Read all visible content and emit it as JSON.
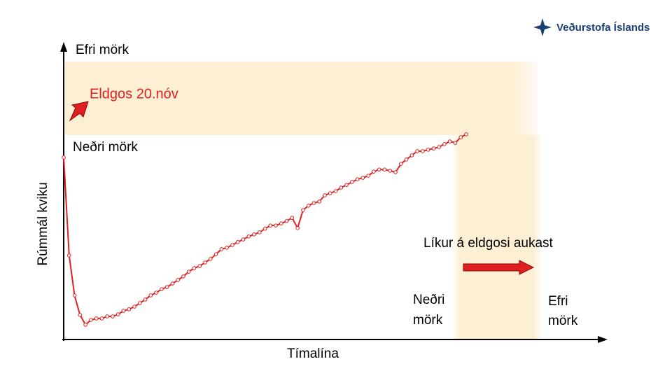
{
  "chart_data": {
    "type": "line",
    "y_label": "Rúmmál kviku",
    "x_label": "Tímalína",
    "logo": "Veðurstofa Íslands",
    "annotations": {
      "upper_limit": "Efri mörk",
      "eruption": "Eldgos 20.nóv",
      "lower_limit": "Neðri mörk",
      "likelihood": "Líkur á eldgosi aukast",
      "time_lower": [
        "Neðri",
        "mörk"
      ],
      "time_upper": [
        "Efri",
        "mörk"
      ]
    },
    "ylim": [
      0,
      100
    ],
    "series": [
      {
        "color": "#e02020",
        "values": [
          61.5,
          28.4,
          14.9,
          8.3,
          5.0,
          6.6,
          7.1,
          7.1,
          7.8,
          7.8,
          8.5,
          9.7,
          10.2,
          11.1,
          12.3,
          13.5,
          14.9,
          15.8,
          17.0,
          17.7,
          18.9,
          20.1,
          21.3,
          22.9,
          24.1,
          24.8,
          26.0,
          27.2,
          28.8,
          30.5,
          31.0,
          31.9,
          32.9,
          33.8,
          34.8,
          35.5,
          36.2,
          37.4,
          38.5,
          38.5,
          39.2,
          40.0,
          41.1,
          37.6,
          43.7,
          45.2,
          46.1,
          46.6,
          48.7,
          49.4,
          50.1,
          51.3,
          52.2,
          53.2,
          54.1,
          54.6,
          55.3,
          56.7,
          57.4,
          57.4,
          57.0,
          56.5,
          59.3,
          60.8,
          62.2,
          63.6,
          63.6,
          64.1,
          64.5,
          65.0,
          66.0,
          66.9,
          66.4,
          68.3,
          69.3
        ]
      }
    ]
  }
}
